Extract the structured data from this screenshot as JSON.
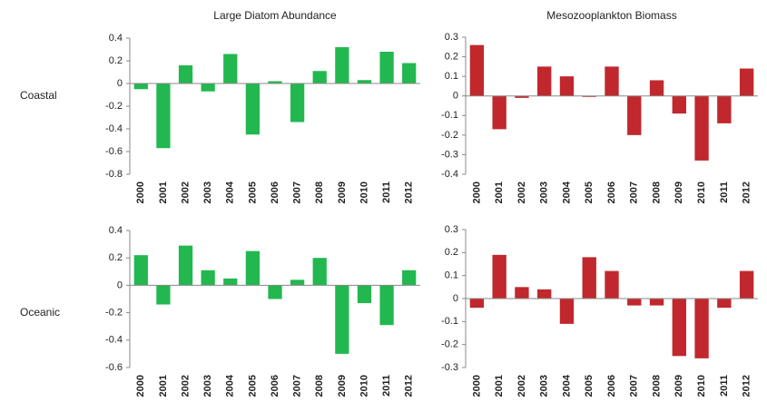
{
  "chart_data": [
    {
      "type": "bar",
      "title": "Large Diatom Abundance",
      "row_label": "Coastal",
      "color": "#22b84f",
      "categories": [
        "2000",
        "2001",
        "2002",
        "2003",
        "2004",
        "2005",
        "2006",
        "2007",
        "2008",
        "2009",
        "2010",
        "2011",
        "2012"
      ],
      "values": [
        -0.05,
        -0.57,
        0.16,
        -0.07,
        0.26,
        -0.45,
        0.02,
        -0.34,
        0.11,
        0.32,
        0.03,
        0.28,
        0.18
      ],
      "ylim": [
        -0.8,
        0.4
      ],
      "yticks": [
        -0.8,
        -0.6,
        -0.4,
        -0.2,
        0,
        0.2,
        0.4
      ]
    },
    {
      "type": "bar",
      "title": "Mesozooplankton Biomass",
      "color": "#c0282d",
      "categories": [
        "2000",
        "2001",
        "2002",
        "2003",
        "2004",
        "2005",
        "2006",
        "2007",
        "2008",
        "2009",
        "2010",
        "2011",
        "2012"
      ],
      "values": [
        0.26,
        -0.17,
        -0.01,
        0.15,
        0.1,
        -0.005,
        0.15,
        -0.2,
        0.08,
        -0.09,
        -0.33,
        -0.14,
        0.14
      ],
      "ylim": [
        -0.4,
        0.3
      ],
      "yticks": [
        -0.4,
        -0.3,
        -0.2,
        -0.1,
        0,
        0.1,
        0.2,
        0.3
      ]
    },
    {
      "type": "bar",
      "row_label": "Oceanic",
      "color": "#22b84f",
      "categories": [
        "2000",
        "2001",
        "2002",
        "2003",
        "2004",
        "2005",
        "2006",
        "2007",
        "2008",
        "2009",
        "2010",
        "2011",
        "2012"
      ],
      "values": [
        0.22,
        -0.14,
        0.29,
        0.11,
        0.05,
        0.25,
        -0.1,
        0.04,
        0.2,
        -0.5,
        -0.13,
        -0.29,
        0.11
      ],
      "ylim": [
        -0.6,
        0.4
      ],
      "yticks": [
        -0.6,
        -0.4,
        -0.2,
        0,
        0.2,
        0.4
      ]
    },
    {
      "type": "bar",
      "color": "#c0282d",
      "categories": [
        "2000",
        "2001",
        "2002",
        "2003",
        "2004",
        "2005",
        "2006",
        "2007",
        "2008",
        "2009",
        "2010",
        "2011",
        "2012"
      ],
      "values": [
        -0.04,
        0.19,
        0.05,
        0.04,
        -0.11,
        0.18,
        0.12,
        -0.03,
        -0.03,
        -0.25,
        -0.26,
        -0.04,
        0.12
      ],
      "ylim": [
        -0.3,
        0.3
      ],
      "yticks": [
        -0.3,
        -0.2,
        -0.1,
        0,
        0.1,
        0.2,
        0.3
      ]
    }
  ]
}
